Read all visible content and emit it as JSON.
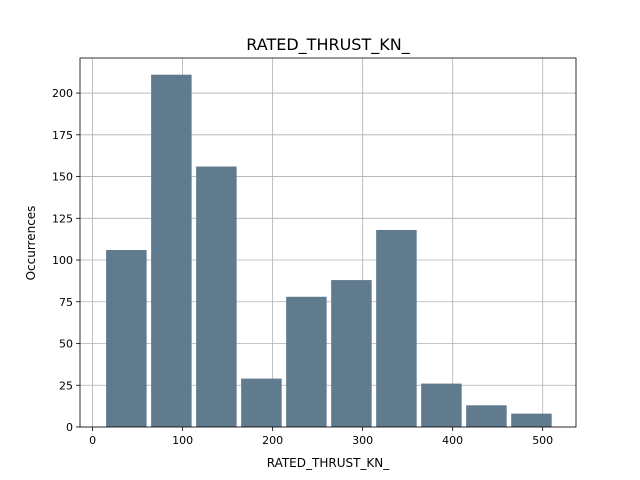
{
  "chart_data": {
    "type": "bar",
    "title": "RATED_THRUST_KN_",
    "xlabel": "RATED_THRUST_KN_",
    "ylabel": "Occurrences",
    "bin_edges": [
      12.5,
      62.5,
      112.5,
      162.5,
      212.5,
      262.5,
      312.5,
      362.5,
      412.5,
      462.5,
      512.5
    ],
    "values": [
      106,
      211,
      156,
      29,
      78,
      88,
      118,
      26,
      13,
      8
    ],
    "xlim": [
      -14,
      537
    ],
    "ylim": [
      0,
      221
    ],
    "x_ticks": [
      0,
      100,
      200,
      300,
      400,
      500
    ],
    "y_ticks": [
      0,
      25,
      50,
      75,
      100,
      125,
      150,
      175,
      200
    ],
    "grid": true,
    "bar_color": "#607b8e"
  }
}
